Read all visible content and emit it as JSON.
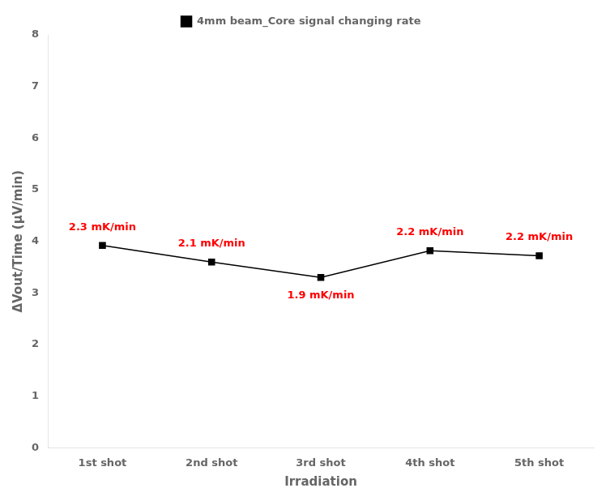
{
  "chart_data": {
    "type": "line",
    "categories": [
      "1st shot",
      "2nd shot",
      "3rd shot",
      "4th shot",
      "5th shot"
    ],
    "series": [
      {
        "name": "4mm beam_Core signal changing rate",
        "color": "#000000",
        "marker": "square",
        "values": [
          3.92,
          3.6,
          3.3,
          3.82,
          3.72
        ]
      }
    ],
    "annotations": [
      {
        "text": "2.3 mK/min",
        "x": "1st shot",
        "color": "#ff0000"
      },
      {
        "text": "2.1 mK/min",
        "x": "2nd shot",
        "color": "#ff0000"
      },
      {
        "text": "1.9 mK/min",
        "x": "3rd shot",
        "color": "#ff0000"
      },
      {
        "text": "2.2 mK/min",
        "x": "4th shot",
        "color": "#ff0000"
      },
      {
        "text": "2.2 mK/min",
        "x": "5th shot",
        "color": "#ff0000"
      }
    ],
    "xlabel": "Irradiation",
    "ylabel": "ΔVout/Time (μV/min)",
    "ylim": [
      0,
      8
    ],
    "yticks": [
      0,
      1,
      2,
      3,
      4,
      5,
      6,
      7,
      8
    ],
    "grid": false,
    "legend": "top"
  }
}
